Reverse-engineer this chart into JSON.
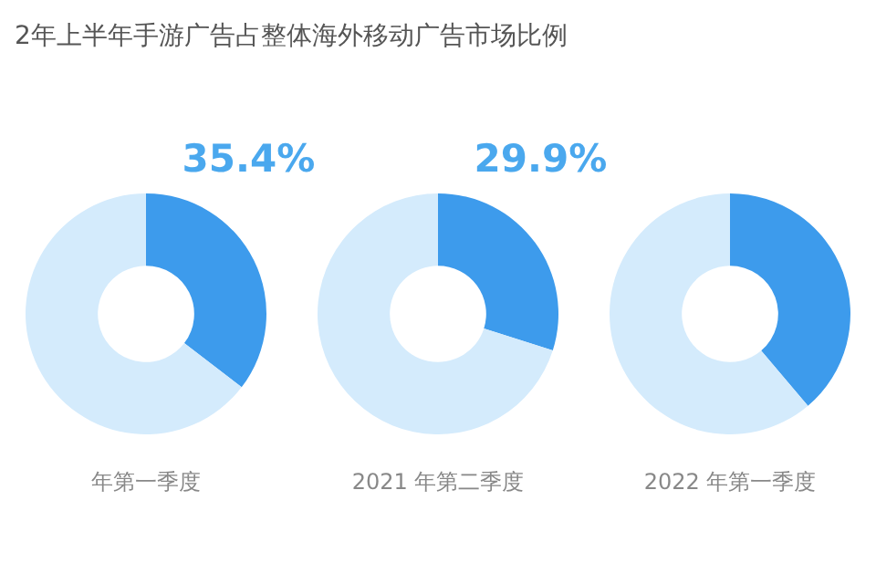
{
  "chart_data": [
    {
      "type": "donut",
      "title": "2年上半年手游广告占整体海外移动广告市场比例",
      "xlabel": "年第一季度",
      "categories": [
        null,
        null
      ],
      "values": [
        35.4,
        64.6
      ],
      "colors": [
        "#3d9bec",
        "#d4ebfc"
      ],
      "value_labels": [
        "35.4%",
        null
      ]
    },
    {
      "type": "donut",
      "xlabel": "2021 年第二季度",
      "categories": [
        null,
        null
      ],
      "values": [
        29.9,
        70.1
      ],
      "colors": [
        "#3d9bec",
        "#d4ebfc"
      ],
      "value_labels": [
        "29.9%",
        null
      ]
    },
    {
      "type": "donut",
      "xlabel": "2022 年第一季度",
      "categories": [
        null,
        null
      ],
      "values": [
        38.8,
        61.2
      ],
      "colors": [
        "#3d9bec",
        "#d4ebfc"
      ]
    }
  ]
}
